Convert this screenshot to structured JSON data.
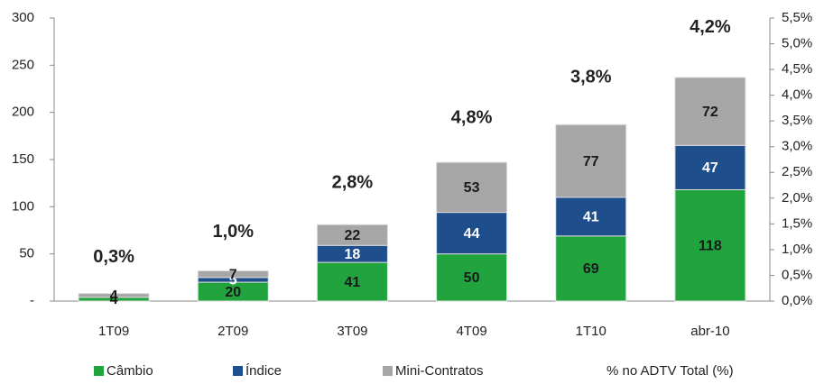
{
  "chart_data": {
    "type": "stacked_bar",
    "categories": [
      "1T09",
      "2T09",
      "3T09",
      "4T09",
      "1T10",
      "abr-10"
    ],
    "series": [
      {
        "name": "Câmbio",
        "color": "#21a33e",
        "label_color": "#1a1a1a",
        "values": [
          4,
          20,
          41,
          50,
          69,
          118
        ]
      },
      {
        "name": "Índice",
        "color": "#1f4e8c",
        "label_color": "#ffffff",
        "values": [
          null,
          5,
          18,
          44,
          41,
          47
        ]
      },
      {
        "name": "Mini-Contratos",
        "color": "#a6a6a6",
        "label_color": "#1a1a1a",
        "values": [
          4,
          7,
          22,
          53,
          77,
          72
        ]
      }
    ],
    "annotations": [
      "0,3%",
      "1,0%",
      "2,8%",
      "4,8%",
      "3,8%",
      "4,2%"
    ],
    "annotation_legend": "% no ADTV Total (%)",
    "ylim": [
      0,
      300
    ],
    "yticks": [
      {
        "value": 0,
        "label": "-"
      },
      50,
      100,
      150,
      200,
      250,
      300
    ],
    "y2lim": [
      0,
      5.5
    ],
    "y2ticks": [
      {
        "value": 0,
        "label": "0,0%"
      },
      {
        "value": 0.5,
        "label": "0,5%"
      },
      {
        "value": 1,
        "label": "1,0%"
      },
      {
        "value": 1.5,
        "label": "1,5%"
      },
      {
        "value": 2,
        "label": "2,0%"
      },
      {
        "value": 2.5,
        "label": "2,5%"
      },
      {
        "value": 3,
        "label": "3,0%"
      },
      {
        "value": 3.5,
        "label": "3,5%"
      },
      {
        "value": 4,
        "label": "4,0%"
      },
      {
        "value": 4.5,
        "label": "4,5%"
      },
      {
        "value": 5,
        "label": "5,0%"
      },
      {
        "value": 5.5,
        "label": "5,5%"
      }
    ],
    "legend": "bottom"
  }
}
